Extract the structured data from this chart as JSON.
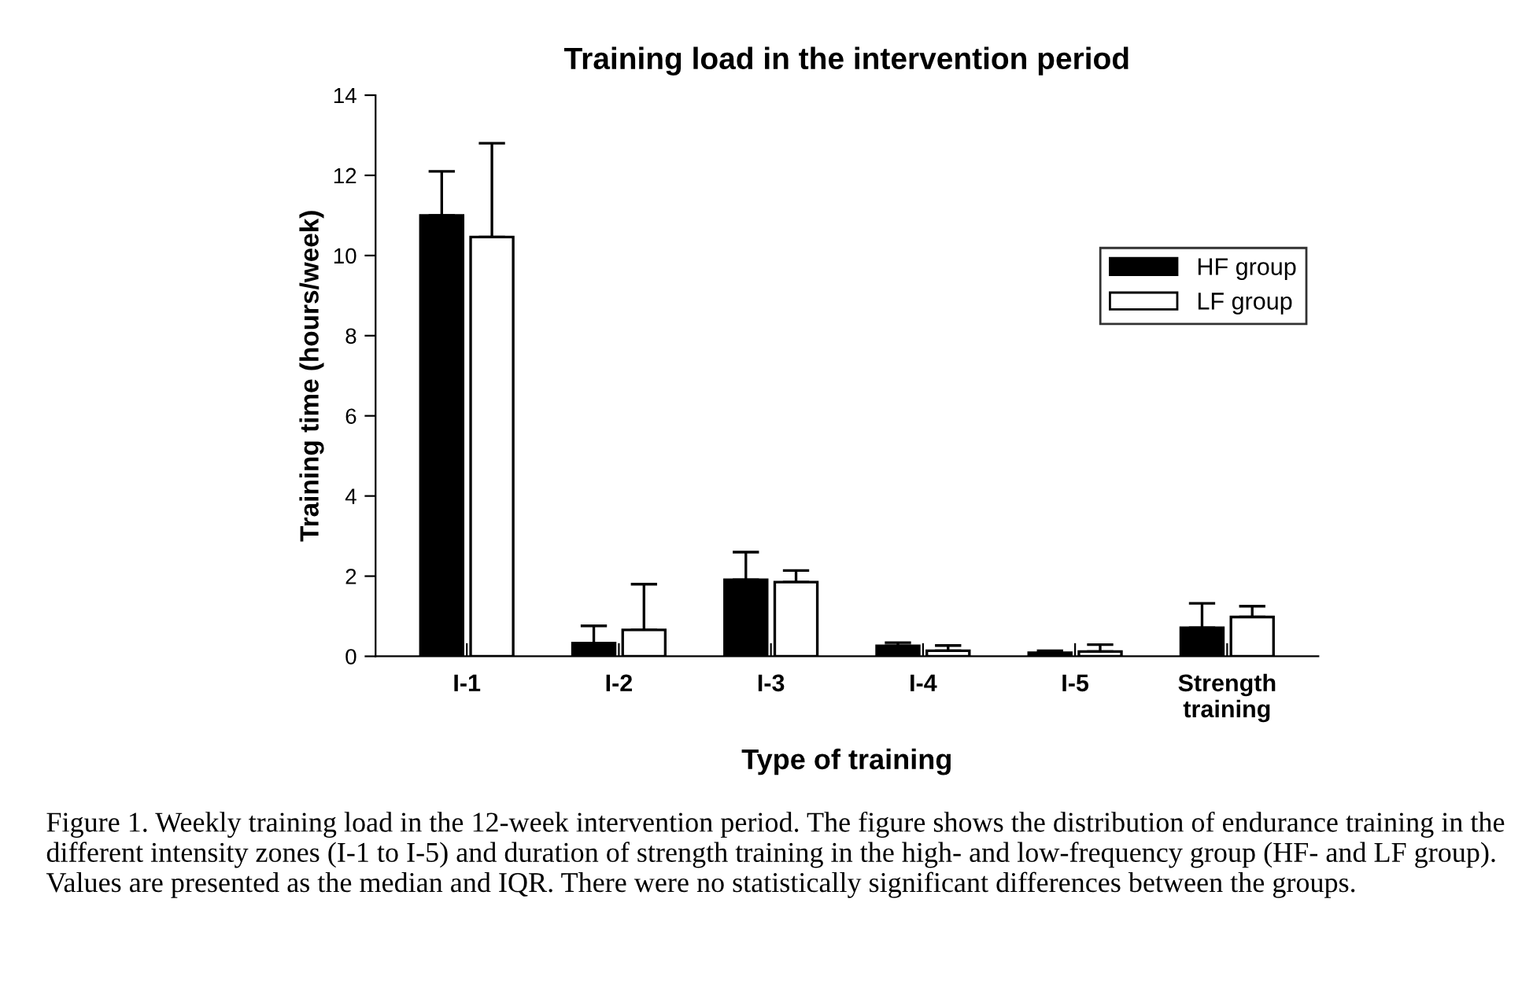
{
  "chart_data": {
    "type": "bar",
    "title": "Training load in the intervention period",
    "xlabel": "Type of training",
    "ylabel": "Training time (hours/week)",
    "categories": [
      "I-1",
      "I-2",
      "I-3",
      "I-4",
      "I-5",
      "Strength\ntraining"
    ],
    "series": [
      {
        "name": "HF group",
        "color": "#000000",
        "values": [
          11.0,
          0.33,
          1.91,
          0.26,
          0.09,
          0.71
        ],
        "errors": [
          [
            11.0,
            12.1
          ],
          [
            0.33,
            0.76
          ],
          [
            1.91,
            2.6
          ],
          [
            0.26,
            0.34
          ],
          [
            0.09,
            0.14
          ],
          [
            0.71,
            1.32
          ]
        ]
      },
      {
        "name": "LF group",
        "color": "#ffffff",
        "values": [
          10.46,
          0.66,
          1.85,
          0.14,
          0.12,
          0.98
        ],
        "errors": [
          [
            10.46,
            12.8
          ],
          [
            0.66,
            1.8
          ],
          [
            1.85,
            2.14
          ],
          [
            0.14,
            0.27
          ],
          [
            0.12,
            0.29
          ],
          [
            0.98,
            1.25
          ]
        ]
      }
    ],
    "ylim": [
      0,
      14
    ],
    "yticks": [
      0,
      2,
      4,
      6,
      8,
      10,
      12,
      14
    ],
    "grid": false,
    "legend": "right",
    "annotations": [
      "Figure 1. Weekly training load in the 12-week intervention period. The figure shows the distribution of endurance training in the different intensity zones (I-1 to I-5) and duration of strength training in the high- and low-frequency group (HF- and LF group). Values are presented as the median and IQR. There were no statistically significant differences between the groups."
    ]
  }
}
